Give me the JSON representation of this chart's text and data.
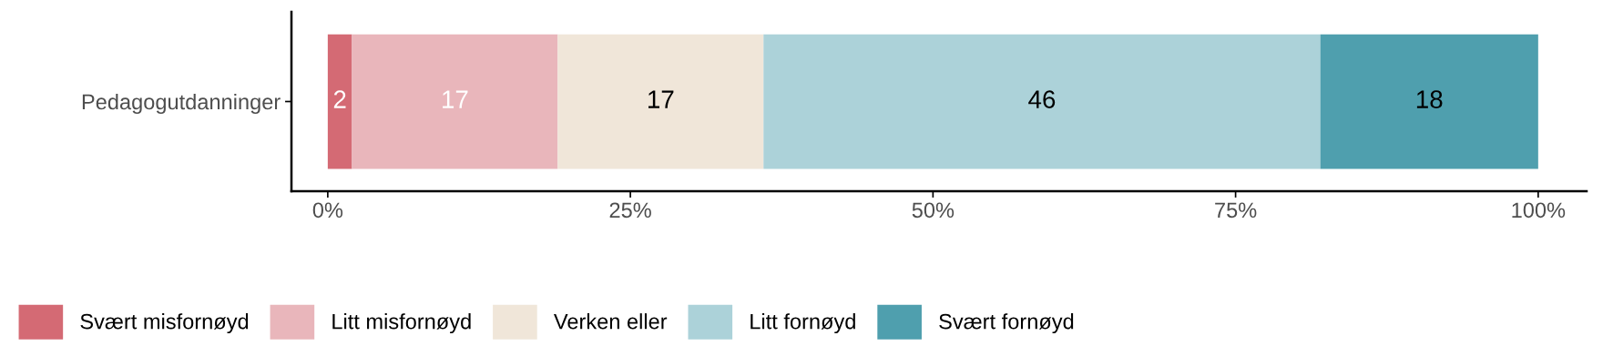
{
  "chart_data": {
    "type": "bar",
    "orientation": "horizontal",
    "stacked": true,
    "categories": [
      "Pedagogutdanninger"
    ],
    "series": [
      {
        "name": "Svært misfornøyd",
        "color": "#d46a74",
        "values": [
          2
        ]
      },
      {
        "name": "Litt misfornøyd",
        "color": "#e9b6bb",
        "values": [
          17
        ]
      },
      {
        "name": "Verken eller",
        "color": "#f0e6d9",
        "values": [
          17
        ]
      },
      {
        "name": "Litt fornøyd",
        "color": "#acd2d9",
        "values": [
          46
        ]
      },
      {
        "name": "Svært fornøyd",
        "color": "#4f9fae",
        "values": [
          18
        ]
      }
    ],
    "xlim": [
      -3,
      104
    ],
    "xticks": [
      {
        "value": 0,
        "label": "0%"
      },
      {
        "value": 25,
        "label": "25%"
      },
      {
        "value": 50,
        "label": "50%"
      },
      {
        "value": 75,
        "label": "75%"
      },
      {
        "value": 100,
        "label": "100%"
      }
    ],
    "data_labels": true,
    "grid": false,
    "legend": "bottom"
  }
}
